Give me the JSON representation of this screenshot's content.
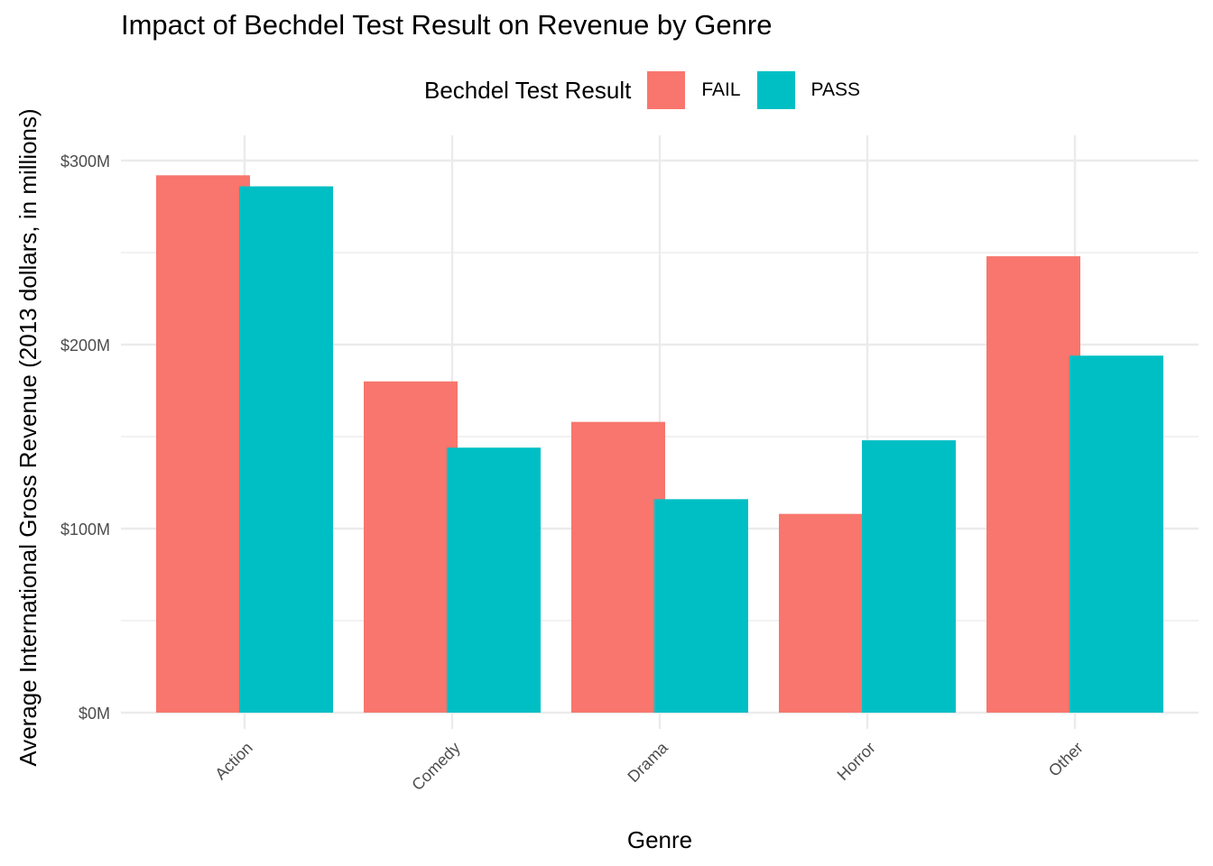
{
  "chart_data": {
    "type": "bar",
    "title": "Impact of Bechdel Test Result on Revenue by Genre",
    "xlabel": "Genre",
    "ylabel": "Average International Gross Revenue (2013 dollars, in millions)",
    "categories": [
      "Action",
      "Comedy",
      "Drama",
      "Horror",
      "Other"
    ],
    "series": [
      {
        "name": "FAIL",
        "color": "#F8766D",
        "values": [
          292,
          180,
          158,
          108,
          248
        ]
      },
      {
        "name": "PASS",
        "color": "#00BFC4",
        "values": [
          286,
          144,
          116,
          148,
          194
        ]
      }
    ],
    "ylim": [
      0,
      300
    ],
    "yticks": [
      0,
      100,
      200,
      300
    ],
    "ytick_labels": [
      "$0M",
      "$100M",
      "$200M",
      "$300M"
    ],
    "legend": {
      "title": "Bechdel Test Result",
      "position": "top"
    },
    "grid": true
  }
}
